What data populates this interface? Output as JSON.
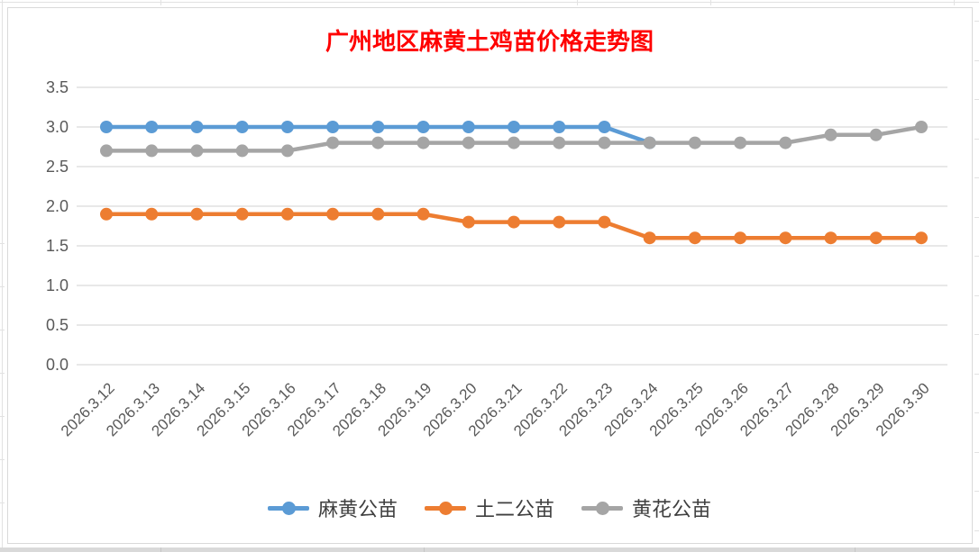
{
  "chart_data": {
    "type": "line",
    "title": "广州地区麻黄土鸡苗价格走势图",
    "title_color": "#FF0000",
    "categories": [
      "2026.3.12",
      "2026.3.13",
      "2026.3.14",
      "2026.3.15",
      "2026.3.16",
      "2026.3.17",
      "2026.3.18",
      "2026.3.19",
      "2026.3.20",
      "2026.3.21",
      "2026.3.22",
      "2026.3.23",
      "2026.3.24",
      "2026.3.25",
      "2026.3.26",
      "2026.3.27",
      "2026.3.28",
      "2026.3.29",
      "2026.3.30"
    ],
    "series": [
      {
        "name": "麻黄公苗",
        "color": "#5B9BD5",
        "values": [
          3.0,
          3.0,
          3.0,
          3.0,
          3.0,
          3.0,
          3.0,
          3.0,
          3.0,
          3.0,
          3.0,
          3.0,
          2.8,
          null,
          null,
          null,
          null,
          null,
          null
        ]
      },
      {
        "name": "土二公苗",
        "color": "#ED7D31",
        "values": [
          1.9,
          1.9,
          1.9,
          1.9,
          1.9,
          1.9,
          1.9,
          1.9,
          1.8,
          1.8,
          1.8,
          1.8,
          1.6,
          1.6,
          1.6,
          1.6,
          1.6,
          1.6,
          1.6
        ]
      },
      {
        "name": "黄花公苗",
        "color": "#A5A5A5",
        "values": [
          2.7,
          2.7,
          2.7,
          2.7,
          2.7,
          2.8,
          2.8,
          2.8,
          2.8,
          2.8,
          2.8,
          2.8,
          2.8,
          2.8,
          2.8,
          2.8,
          2.9,
          2.9,
          3.0
        ]
      }
    ],
    "ylim": [
      0.0,
      3.5
    ],
    "ytick_step": 0.5,
    "yticks": [
      "0.0",
      "0.5",
      "1.0",
      "1.5",
      "2.0",
      "2.5",
      "3.0",
      "3.5"
    ],
    "grid": true,
    "grid_color": "#D9D9D9",
    "axis_label_color": "#595959",
    "legend_position": "bottom"
  }
}
